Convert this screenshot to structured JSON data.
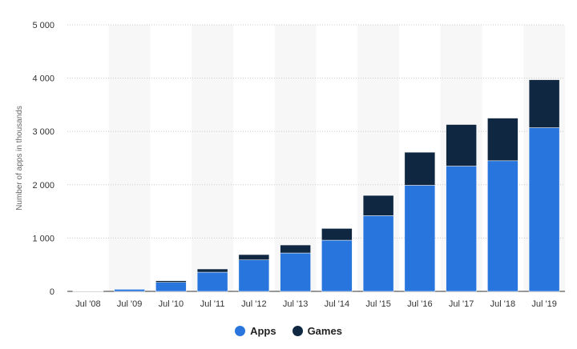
{
  "chart_data": {
    "type": "bar",
    "stacked": true,
    "categories": [
      "Jul '08",
      "Jul '09",
      "Jul '10",
      "Jul '11",
      "Jul '12",
      "Jul '13",
      "Jul '14",
      "Jul '15",
      "Jul '16",
      "Jul '17",
      "Jul '18",
      "Jul '19"
    ],
    "series": [
      {
        "name": "Apps",
        "color": "#2876dd",
        "values": [
          2,
          40,
          170,
          360,
          590,
          720,
          960,
          1420,
          1990,
          2350,
          2450,
          3070
        ]
      },
      {
        "name": "Games",
        "color": "#0f2740",
        "values": [
          1,
          5,
          30,
          60,
          100,
          150,
          220,
          380,
          620,
          780,
          800,
          900
        ]
      }
    ],
    "ylabel": "Number of apps in thousands",
    "ylim": [
      0,
      5000
    ],
    "yticks": [
      0,
      1000,
      2000,
      3000,
      4000,
      5000
    ],
    "ytick_labels": [
      "0",
      "1 000",
      "2 000",
      "3 000",
      "4 000",
      "5 000"
    ],
    "grid": true,
    "legend_position": "bottom-center"
  }
}
